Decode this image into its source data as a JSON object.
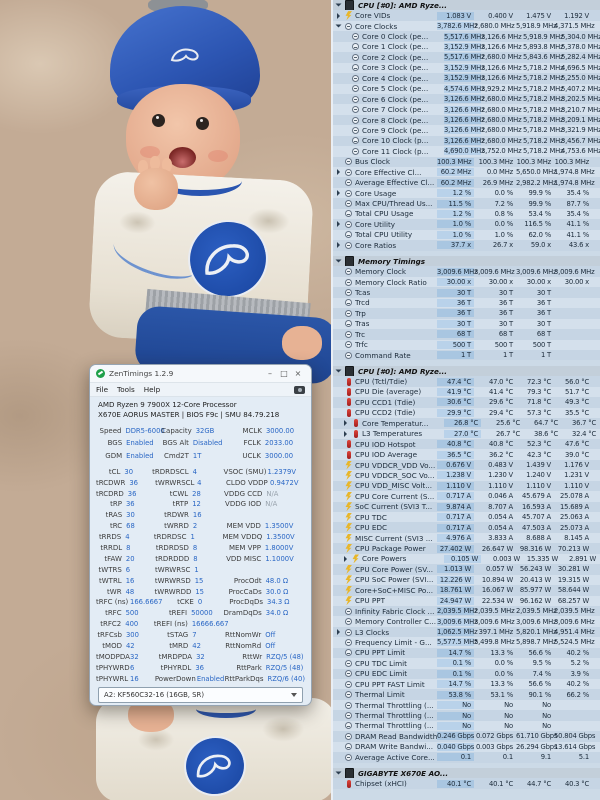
{
  "wallpaper": {
    "hat_color": "#2c55b2",
    "onesie_color": "#f2efe7",
    "pants_color": "#24509e",
    "waistband_color": "#a2a6ab",
    "logo_color": "#1d4aa6",
    "blanket_color": "#c3ab95",
    "skin_color": "#e9b69c"
  },
  "zt": {
    "title": "ZenTimings 1.2.9",
    "menu": [
      "File",
      "Tools",
      "Help"
    ],
    "buttons": {
      "min": "–",
      "max": "□",
      "close": "×"
    },
    "cpu_line1": "AMD Ryzen 9 7900X 12-Core Processor",
    "cpu_line2": "X670E AORUS MASTER | BIOS F9c | SMU 84.79.218",
    "config": [
      [
        "Speed",
        "DDR5-6000",
        "Capacity",
        "32GB",
        "MCLK",
        "3000.00"
      ],
      [
        "BGS",
        "Enabled",
        "BGS Alt",
        "Disabled",
        "FCLK",
        "2033.00"
      ],
      [
        "GDM",
        "Enabled",
        "Cmd2T",
        "1T",
        "UCLK",
        "3000.00"
      ]
    ],
    "grid": [
      [
        "tCL",
        "30",
        "tRDRDSCL",
        "4",
        "VSOC (SMU)",
        "1.2379V"
      ],
      [
        "tRCDWR",
        "36",
        "tWRWRSCL",
        "4",
        "CLDO VDDP",
        "0.9472V"
      ],
      [
        "tRCDRD",
        "36",
        "tCWL",
        "28",
        "VDDG CCD",
        "N/A"
      ],
      [
        "tRP",
        "36",
        "tRTP",
        "12",
        "VDDG IOD",
        "N/A"
      ],
      [
        "tRAS",
        "30",
        "tRDWR",
        "16",
        "",
        ""
      ],
      [
        "tRC",
        "68",
        "tWRRD",
        "2",
        "MEM VDD",
        "1.3500V"
      ],
      [
        "tRRDS",
        "4",
        "tRDRDSC",
        "1",
        "MEM VDDQ",
        "1.3500V"
      ],
      [
        "tRRDL",
        "8",
        "tRDRDSD",
        "8",
        "MEM VPP",
        "1.8000V"
      ],
      [
        "tFAW",
        "20",
        "tRDRDDD",
        "8",
        "VDD MISC",
        "1.1000V"
      ],
      [
        "tWTRS",
        "6",
        "tWRWRSC",
        "1",
        "",
        ""
      ],
      [
        "tWTRL",
        "16",
        "tWRWRSD",
        "15",
        "ProcOdt",
        "48.0 Ω"
      ],
      [
        "tWR",
        "48",
        "tWRWRDD",
        "15",
        "ProcCaDs",
        "30.0 Ω"
      ],
      [
        "tRFC (ns)",
        "166.6667",
        "tCKE",
        "0",
        "ProcDqDs",
        "34.3 Ω"
      ],
      [
        "tRFC",
        "500",
        "tREFI",
        "50000",
        "DramDqDs",
        "34.0 Ω"
      ],
      [
        "tRFC2",
        "400",
        "tREFI (ns)",
        "16666.667",
        "",
        ""
      ],
      [
        "tRFCsb",
        "300",
        "tSTAG",
        "7",
        "RttNomWr",
        "Off"
      ],
      [
        "tMOD",
        "42",
        "tMRD",
        "42",
        "RttNomRd",
        "Off"
      ],
      [
        "tMODPDA",
        "32",
        "tMRDPDA",
        "32",
        "RttWr",
        "RZQ/5 (48)"
      ],
      [
        "tPHYWRD",
        "6",
        "tPHYRDL",
        "36",
        "RttPark",
        "RZQ/5 (48)"
      ],
      [
        "tPHYWRL",
        "16",
        "PowerDown",
        "Enabled",
        "RttParkDqs",
        "RZQ/6 (40)"
      ]
    ],
    "dimm": "A2: KF560C32-16 (16GB, SR)"
  },
  "sensors": {
    "sections": [
      {
        "name": "CPU [#0]: AMD Ryze...",
        "rows": [
          {
            "ch": ">",
            "t": "b",
            "label": "Core VIDs",
            "v": [
              "1.083 V",
              "0.400 V",
              "1.475 V",
              "1.192 V"
            ]
          },
          {
            "ch": "v",
            "t": "c",
            "label": "Core Clocks",
            "v": [
              "3,782.6 MHz",
              "2,680.0 MHz",
              "5,918.9 MHz",
              "4,371.5 MHz"
            ]
          },
          {
            "t": "c",
            "ind": 1,
            "label": "Core 0 Clock (pe...",
            "v": [
              "5,517.6 MHz",
              "3,126.6 MHz",
              "5,918.9 MHz",
              "5,304.0 MHz"
            ]
          },
          {
            "t": "c",
            "ind": 1,
            "label": "Core 1 Clock (pe...",
            "v": [
              "3,152.9 MHz",
              "3,126.6 MHz",
              "5,893.8 MHz",
              "5,378.0 MHz"
            ]
          },
          {
            "t": "c",
            "ind": 1,
            "label": "Core 2 Clock (pe...",
            "v": [
              "5,517.6 MHz",
              "2,680.0 MHz",
              "5,843.6 MHz",
              "5,282.4 MHz"
            ]
          },
          {
            "t": "c",
            "ind": 1,
            "label": "Core 3 Clock (pe...",
            "v": [
              "3,152.9 MHz",
              "3,126.6 MHz",
              "5,718.2 MHz",
              "4,696.5 MHz"
            ]
          },
          {
            "t": "c",
            "ind": 1,
            "label": "Core 4 Clock (pe...",
            "v": [
              "3,152.9 MHz",
              "3,126.6 MHz",
              "5,718.2 MHz",
              "5,255.0 MHz"
            ]
          },
          {
            "t": "c",
            "ind": 1,
            "label": "Core 5 Clock (pe...",
            "v": [
              "4,574.6 MHz",
              "3,929.2 MHz",
              "5,718.2 MHz",
              "5,407.2 MHz"
            ]
          },
          {
            "t": "c",
            "ind": 1,
            "label": "Core 6 Clock (pe...",
            "v": [
              "3,126.6 MHz",
              "2,680.0 MHz",
              "5,718.2 MHz",
              "3,202.5 MHz"
            ]
          },
          {
            "t": "c",
            "ind": 1,
            "label": "Core 7 Clock (pe...",
            "v": [
              "3,126.6 MHz",
              "2,680.0 MHz",
              "5,718.2 MHz",
              "3,210.7 MHz"
            ]
          },
          {
            "t": "c",
            "ind": 1,
            "label": "Core 8 Clock (pe...",
            "v": [
              "3,126.6 MHz",
              "2,680.0 MHz",
              "5,718.2 MHz",
              "3,209.1 MHz"
            ]
          },
          {
            "t": "c",
            "ind": 1,
            "label": "Core 9 Clock (pe...",
            "v": [
              "3,126.6 MHz",
              "2,680.0 MHz",
              "5,718.2 MHz",
              "3,321.9 MHz"
            ]
          },
          {
            "t": "c",
            "ind": 1,
            "label": "Core 10 Clock (p...",
            "v": [
              "3,126.6 MHz",
              "2,680.0 MHz",
              "5,718.2 MHz",
              "3,456.7 MHz"
            ]
          },
          {
            "t": "c",
            "ind": 1,
            "label": "Core 11 Clock (p...",
            "v": [
              "4,690.0 MHz",
              "3,752.0 MHz",
              "5,718.2 MHz",
              "4,753.6 MHz"
            ]
          },
          {
            "t": "c",
            "label": "Bus Clock",
            "v": [
              "100.3 MHz",
              "100.3 MHz",
              "100.3 MHz",
              "100.3 MHz"
            ]
          },
          {
            "ch": ">",
            "t": "c",
            "label": "Core Effective Cl...",
            "v": [
              "60.2 MHz",
              "0.0 MHz",
              "5,650.0 MHz",
              "1,974.8 MHz"
            ]
          },
          {
            "t": "c",
            "label": "Average Effective Cl...",
            "v": [
              "60.2 MHz",
              "26.9 MHz",
              "2,982.2 MHz",
              "1,974.8 MHz"
            ]
          },
          {
            "ch": ">",
            "t": "c",
            "label": "Core Usage",
            "v": [
              "1.2 %",
              "0.0 %",
              "99.9 %",
              "35.4 %"
            ]
          },
          {
            "t": "c",
            "label": "Max CPU/Thread Us...",
            "v": [
              "11.5 %",
              "7.2 %",
              "99.9 %",
              "87.7 %"
            ]
          },
          {
            "t": "c",
            "label": "Total CPU Usage",
            "v": [
              "1.2 %",
              "0.8 %",
              "53.4 %",
              "35.4 %"
            ]
          },
          {
            "ch": ">",
            "t": "c",
            "label": "Core Utility",
            "v": [
              "1.0 %",
              "0.0 %",
              "116.5 %",
              "41.1 %"
            ]
          },
          {
            "t": "c",
            "label": "Total CPU Utility",
            "v": [
              "1.0 %",
              "1.0 %",
              "62.0 %",
              "41.1 %"
            ]
          },
          {
            "ch": ">",
            "t": "c",
            "label": "Core Ratios",
            "v": [
              "37.7 x",
              "26.7 x",
              "59.0 x",
              "43.6 x"
            ]
          }
        ]
      },
      {
        "name": "Memory Timings",
        "rows": [
          {
            "t": "c",
            "label": "Memory Clock",
            "v": [
              "3,009.6 MHz",
              "3,009.6 MHz",
              "3,009.6 MHz",
              "3,009.6 MHz"
            ]
          },
          {
            "t": "c",
            "label": "Memory Clock Ratio",
            "v": [
              "30.00 x",
              "30.00 x",
              "30.00 x",
              "30.00 x"
            ]
          },
          {
            "t": "c",
            "label": "Tcas",
            "v": [
              "30 T",
              "30 T",
              "30 T",
              ""
            ]
          },
          {
            "t": "c",
            "label": "Trcd",
            "v": [
              "36 T",
              "36 T",
              "36 T",
              ""
            ]
          },
          {
            "t": "c",
            "label": "Trp",
            "v": [
              "36 T",
              "36 T",
              "36 T",
              ""
            ]
          },
          {
            "t": "c",
            "label": "Tras",
            "v": [
              "30 T",
              "30 T",
              "30 T",
              ""
            ]
          },
          {
            "t": "c",
            "label": "Trc",
            "v": [
              "68 T",
              "68 T",
              "68 T",
              ""
            ]
          },
          {
            "t": "c",
            "label": "Trfc",
            "v": [
              "500 T",
              "500 T",
              "500 T",
              ""
            ]
          },
          {
            "t": "c",
            "label": "Command Rate",
            "v": [
              "1 T",
              "1 T",
              "1 T",
              ""
            ]
          }
        ]
      },
      {
        "name": "CPU [#0]: AMD Ryze...",
        "rows": [
          {
            "t": "t",
            "label": "CPU (Tctl/Tdie)",
            "v": [
              "47.4 °C",
              "47.0 °C",
              "72.3 °C",
              "56.0 °C"
            ]
          },
          {
            "t": "t",
            "label": "CPU Die (average)",
            "v": [
              "41.9 °C",
              "41.4 °C",
              "79.3 °C",
              "51.7 °C"
            ]
          },
          {
            "t": "t",
            "label": "CPU CCD1 (Tdie)",
            "v": [
              "30.6 °C",
              "29.6 °C",
              "71.8 °C",
              "49.3 °C"
            ]
          },
          {
            "t": "t",
            "label": "CPU CCD2 (Tdie)",
            "v": [
              "29.9 °C",
              "29.4 °C",
              "57.3 °C",
              "35.5 °C"
            ]
          },
          {
            "ch": ">",
            "t": "t",
            "ind": 1,
            "label": "Core Temperatur...",
            "v": [
              "26.8 °C",
              "25.6 °C",
              "64.7 °C",
              "36.7 °C"
            ]
          },
          {
            "ch": ">",
            "t": "t",
            "ind": 1,
            "label": "L3 Temperatures",
            "v": [
              "27.0 °C",
              "26.7 °C",
              "38.6 °C",
              "32.4 °C"
            ]
          },
          {
            "t": "t",
            "label": "CPU IOD Hotspot",
            "v": [
              "40.8 °C",
              "40.8 °C",
              "52.3 °C",
              "47.6 °C"
            ]
          },
          {
            "t": "t",
            "label": "CPU IOD Average",
            "v": [
              "36.5 °C",
              "36.2 °C",
              "42.3 °C",
              "39.0 °C"
            ]
          },
          {
            "t": "b",
            "label": "CPU VDDCR_VDD Vo...",
            "v": [
              "0.676 V",
              "0.483 V",
              "1.439 V",
              "1.176 V"
            ]
          },
          {
            "t": "b",
            "label": "CPU VDDCR_SOC Vo...",
            "v": [
              "1.238 V",
              "1.230 V",
              "1.240 V",
              "1.231 V"
            ]
          },
          {
            "t": "b",
            "label": "CPU VDD_MISC Volt...",
            "v": [
              "1.110 V",
              "1.110 V",
              "1.110 V",
              "1.110 V"
            ]
          },
          {
            "t": "b",
            "label": "CPU Core Current (S...",
            "v": [
              "0.717 A",
              "0.046 A",
              "45.679 A",
              "25.078 A"
            ]
          },
          {
            "t": "b",
            "label": "SoC Current (SVI3 T...",
            "v": [
              "9.874 A",
              "8.707 A",
              "16.593 A",
              "15.689 A"
            ]
          },
          {
            "t": "b",
            "label": "CPU TDC",
            "v": [
              "0.717 A",
              "0.054 A",
              "45.707 A",
              "25.063 A"
            ]
          },
          {
            "t": "b",
            "label": "CPU EDC",
            "v": [
              "0.717 A",
              "0.054 A",
              "47.503 A",
              "25.073 A"
            ]
          },
          {
            "t": "b",
            "label": "MISC Current (SVI3 ...",
            "v": [
              "4.976 A",
              "3.833 A",
              "8.688 A",
              "8.145 A"
            ]
          },
          {
            "t": "b",
            "label": "CPU Package Power",
            "v": [
              "27.402 W",
              "26.647 W",
              "98.316 W",
              "70.213 W"
            ]
          },
          {
            "ch": ">",
            "t": "b",
            "ind": 1,
            "label": "Core Powers",
            "v": [
              "0.105 W",
              "0.003 W",
              "15.335 W",
              "2.891 W"
            ]
          },
          {
            "t": "b",
            "label": "CPU Core Power (SV...",
            "v": [
              "1.013 W",
              "0.057 W",
              "56.243 W",
              "30.281 W"
            ]
          },
          {
            "t": "b",
            "label": "CPU SoC Power (SVI...",
            "v": [
              "12.226 W",
              "10.894 W",
              "20.413 W",
              "19.315 W"
            ]
          },
          {
            "t": "b",
            "label": "Core+SoC+MISC Po...",
            "v": [
              "18.761 W",
              "16.067 W",
              "85.977 W",
              "58.644 W"
            ]
          },
          {
            "t": "b",
            "label": "CPU PPT",
            "v": [
              "24.947 W",
              "22.534 W",
              "96.162 W",
              "68.257 W"
            ]
          },
          {
            "t": "c",
            "label": "Infinity Fabric Clock ...",
            "v": [
              "2,039.5 MHz",
              "2,039.5 MHz",
              "2,039.5 MHz",
              "2,039.5 MHz"
            ]
          },
          {
            "t": "c",
            "label": "Memory Controller C...",
            "v": [
              "3,009.6 MHz",
              "3,009.6 MHz",
              "3,009.6 MHz",
              "3,009.6 MHz"
            ]
          },
          {
            "ch": ">",
            "t": "c",
            "label": "L3 Clocks",
            "v": [
              "1,062.5 MHz",
              "397.1 MHz",
              "5,820.1 MHz",
              "4,951.4 MHz"
            ]
          },
          {
            "t": "c",
            "label": "Frequency Limit - G...",
            "v": [
              "5,577.5 MHz",
              "5,499.8 MHz",
              "5,898.7 MHz",
              "5,524.5 MHz"
            ]
          },
          {
            "t": "c",
            "label": "CPU PPT Limit",
            "v": [
              "14.7 %",
              "13.3 %",
              "56.6 %",
              "40.2 %"
            ]
          },
          {
            "t": "c",
            "label": "CPU TDC Limit",
            "v": [
              "0.1 %",
              "0.0 %",
              "9.5 %",
              "5.2 %"
            ]
          },
          {
            "t": "c",
            "label": "CPU EDC Limit",
            "v": [
              "0.1 %",
              "0.0 %",
              "7.4 %",
              "3.9 %"
            ]
          },
          {
            "t": "c",
            "label": "CPU PPT FAST Limit",
            "v": [
              "14.7 %",
              "13.3 %",
              "56.6 %",
              "40.2 %"
            ]
          },
          {
            "t": "c",
            "label": "Thermal Limit",
            "v": [
              "53.8 %",
              "53.1 %",
              "90.1 %",
              "66.2 %"
            ]
          },
          {
            "t": "c",
            "label": "Thermal Throttling (...",
            "v": [
              "No",
              "No",
              "No",
              ""
            ]
          },
          {
            "t": "c",
            "label": "Thermal Throttling (...",
            "v": [
              "No",
              "No",
              "No",
              ""
            ]
          },
          {
            "t": "c",
            "label": "Thermal Throttling (...",
            "v": [
              "No",
              "No",
              "No",
              ""
            ]
          },
          {
            "t": "c",
            "label": "DRAM Read Bandwidth",
            "v": [
              "0.246 Gbps",
              "0.072 Gbps",
              "61.710 Gbps",
              "50.804 Gbps"
            ]
          },
          {
            "t": "c",
            "label": "DRAM Write Bandwi...",
            "v": [
              "0.040 Gbps",
              "0.003 Gbps",
              "26.294 Gbps",
              "13.614 Gbps"
            ]
          },
          {
            "t": "c",
            "label": "Average Active Core...",
            "v": [
              "0.1",
              "0.1",
              "9.1",
              "5.1"
            ]
          }
        ]
      },
      {
        "name": "GIGABYTE X670E AO...",
        "rows": [
          {
            "t": "t",
            "label": "Chipset (xHCI)",
            "v": [
              "40.1 °C",
              "40.1 °C",
              "44.7 °C",
              "40.3 °C"
            ]
          }
        ]
      }
    ]
  }
}
